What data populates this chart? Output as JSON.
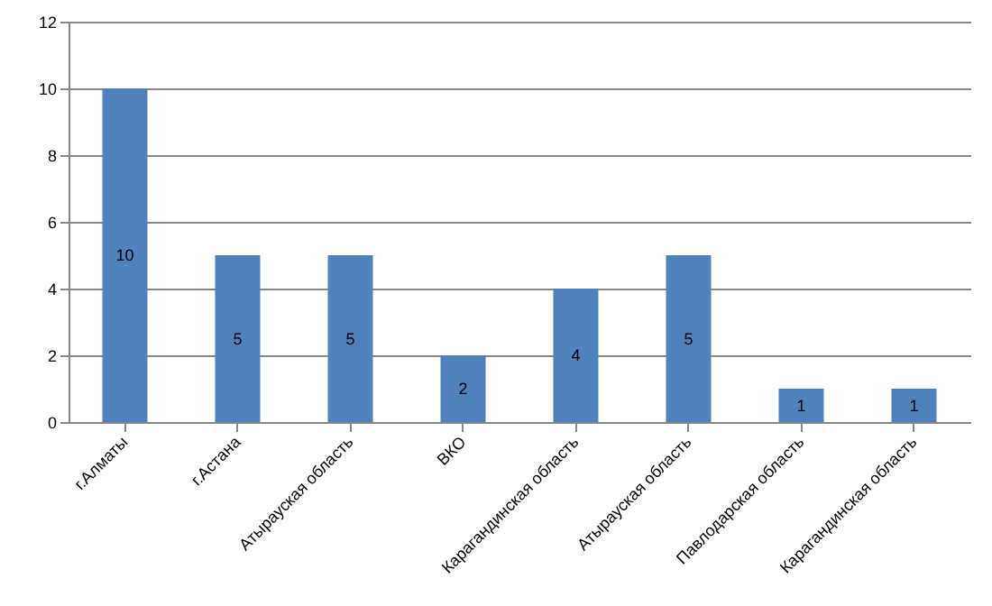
{
  "chart_data": {
    "type": "bar",
    "categories": [
      "г.Алматы",
      "г.Астана",
      "Атырауская область",
      "ВКО",
      "Карагандинская область",
      "Атырауская область",
      "Павлодарская область",
      "Карагандинская область"
    ],
    "values": [
      10,
      5,
      5,
      2,
      4,
      5,
      1,
      1
    ],
    "color": "#4f81bd",
    "ylim": [
      0,
      12
    ],
    "yticks": [
      0,
      2,
      4,
      6,
      8,
      10,
      12
    ],
    "grid": "y",
    "data_labels": true
  }
}
